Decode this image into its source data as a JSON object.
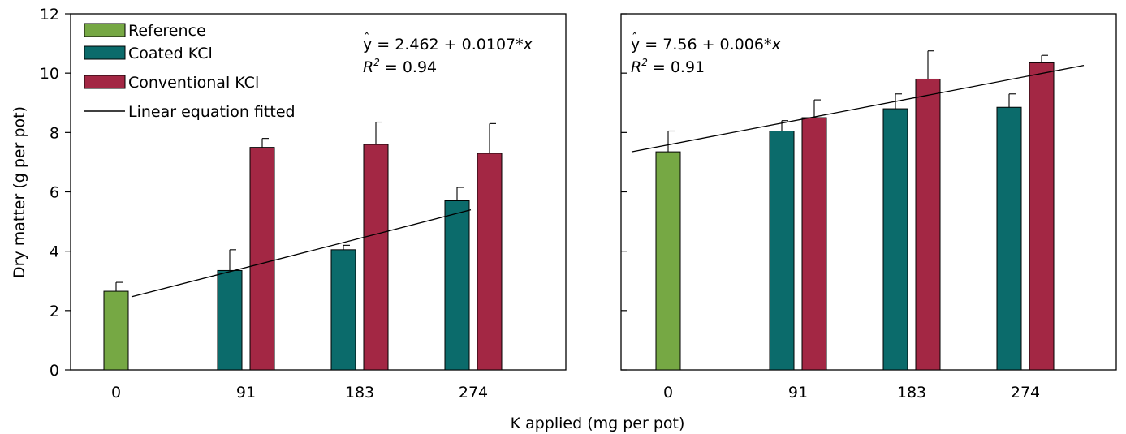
{
  "chart_data": [
    {
      "type": "bar",
      "panel": "left",
      "categories": [
        "0",
        "91",
        "183",
        "274"
      ],
      "ylabel": "Dry matter (g per pot)",
      "ylim": [
        0,
        12
      ],
      "yticks": [
        0,
        2,
        4,
        6,
        8,
        10,
        12
      ],
      "series": [
        {
          "name": "Reference",
          "color": "#76a844",
          "values": [
            2.65,
            null,
            null,
            null
          ],
          "errors": [
            0.3,
            null,
            null,
            null
          ]
        },
        {
          "name": "Coated KCl",
          "color": "#0b6b6b",
          "values": [
            null,
            3.35,
            4.05,
            5.7
          ],
          "errors": [
            null,
            0.7,
            0.15,
            0.45
          ]
        },
        {
          "name": "Conventional KCl",
          "color": "#a32744",
          "values": [
            null,
            7.5,
            7.6,
            7.3
          ],
          "errors": [
            null,
            0.3,
            0.75,
            1.0
          ]
        }
      ],
      "fit": {
        "name": "Linear equation fitted",
        "intercept": 2.462,
        "slope": 0.0107,
        "x_range": [
          0,
          274
        ]
      },
      "equation": {
        "main": "y = 2.462 + 0.0107*",
        "var": "x",
        "r2_sup": "2",
        "r2_value": " = 0.94"
      },
      "legend_position": "top-left"
    },
    {
      "type": "bar",
      "panel": "right",
      "categories": [
        "0",
        "91",
        "183",
        "274"
      ],
      "ylim": [
        0,
        12
      ],
      "yticks": [
        0,
        2,
        4,
        6,
        8,
        10,
        12
      ],
      "series": [
        {
          "name": "Reference",
          "color": "#76a844",
          "values": [
            7.35,
            null,
            null,
            null
          ],
          "errors": [
            0.7,
            null,
            null,
            null
          ]
        },
        {
          "name": "Coated KCl",
          "color": "#0b6b6b",
          "values": [
            null,
            8.05,
            8.8,
            8.85
          ],
          "errors": [
            null,
            0.35,
            0.5,
            0.45
          ]
        },
        {
          "name": "Conventional KCl",
          "color": "#a32744",
          "values": [
            null,
            8.5,
            9.8,
            10.35
          ],
          "errors": [
            null,
            0.6,
            0.95,
            0.25
          ]
        }
      ],
      "fit": {
        "name": "Linear equation fitted",
        "intercept": 7.56,
        "slope": 0.006,
        "x_range": [
          -35,
          450
        ]
      },
      "equation": {
        "main": "y = 7.56 + 0.006*",
        "var": "x",
        "r2_sup": "2",
        "r2_value": " = 0.91"
      }
    }
  ],
  "shared": {
    "xlabel": "K applied (mg per pot)",
    "legend": [
      "Reference",
      "Coated KCl",
      "Conventional KCl",
      "Linear equation fitted"
    ],
    "r_label": "R"
  }
}
